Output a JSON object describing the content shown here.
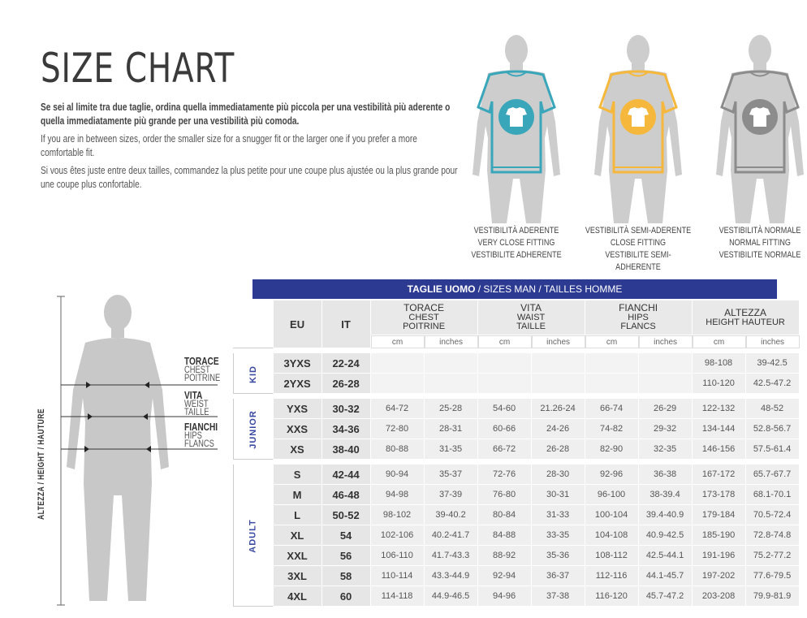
{
  "title": "SIZE CHART",
  "intro": {
    "it": "Se sei al limite tra due taglie, ordina quella immediatamente più piccola per una vestibilità più aderente o quella immediatamente più grande per una vestibilità più comoda.",
    "en": "If you are in between sizes, order the smaller size for a snugger fit or the larger one if you prefer a more comfortable fit.",
    "fr": "Si vous êtes juste entre deux tailles, commandez la plus petite pour une coupe plus ajustée ou la plus grande pour une coupe plus confortable."
  },
  "fits": [
    {
      "l1": "VESTIBILITÀ ADERENTE",
      "l2": "VERY CLOSE FITTING",
      "l3": "VESTIBILITE ADHERENTE",
      "color": "#3aa6b9"
    },
    {
      "l1": "VESTIBILITÀ SEMI-ADERENTE",
      "l2": "CLOSE FITTING",
      "l3": "VESTIBILITE SEMI-ADHERENTE",
      "color": "#f5b83c"
    },
    {
      "l1": "VESTIBILITÀ NORMALE",
      "l2": "NORMAL FITTING",
      "l3": "VESTIBILITE NORMALE",
      "color": "#8c8c8c"
    }
  ],
  "measure_labels": {
    "chest": {
      "l1": "TORACE",
      "l2": "CHEST",
      "l3": "POITRINE"
    },
    "waist": {
      "l1": "VITA",
      "l2": "WEIST",
      "l3": "TAILLE"
    },
    "hips": {
      "l1": "FIANCHI",
      "l2": "HIPS",
      "l3": "FLANCS"
    },
    "height": "ALTEZZA / HEIGHT / HAUTURE"
  },
  "table": {
    "banner_bold": "TAGLIE UOMO",
    "banner_rest": " / SIZES MAN / TAILLES HOMME",
    "col_eu": "EU",
    "col_it": "IT",
    "chest": {
      "l1": "TORACE",
      "l2": "CHEST",
      "l3": "POITRINE"
    },
    "waist": {
      "l1": "VITA",
      "l2": "WAIST",
      "l3": "TAILLE"
    },
    "hips": {
      "l1": "FIANCHI",
      "l2": "HIPS",
      "l3": "FLANCS"
    },
    "height": {
      "l1": "ALTEZZA",
      "l2": "HEIGHT HAUTEUR"
    },
    "cm": "cm",
    "inches": "inches",
    "groups": [
      {
        "name": "KID",
        "rows": [
          [
            "3YXS",
            "22-24",
            "",
            "",
            "",
            "",
            "",
            "",
            "98-108",
            "39-42.5"
          ],
          [
            "2YXS",
            "26-28",
            "",
            "",
            "",
            "",
            "",
            "",
            "110-120",
            "42.5-47.2"
          ]
        ]
      },
      {
        "name": "JUNIOR",
        "rows": [
          [
            "YXS",
            "30-32",
            "64-72",
            "25-28",
            "54-60",
            "21.26-24",
            "66-74",
            "26-29",
            "122-132",
            "48-52"
          ],
          [
            "XXS",
            "34-36",
            "72-80",
            "28-31",
            "60-66",
            "24-26",
            "74-82",
            "29-32",
            "134-144",
            "52.8-56.7"
          ],
          [
            "XS",
            "38-40",
            "80-88",
            "31-35",
            "66-72",
            "26-28",
            "82-90",
            "32-35",
            "146-156",
            "57.5-61.4"
          ]
        ]
      },
      {
        "name": "ADULT",
        "rows": [
          [
            "S",
            "42-44",
            "90-94",
            "35-37",
            "72-76",
            "28-30",
            "92-96",
            "36-38",
            "167-172",
            "65.7-67.7"
          ],
          [
            "M",
            "46-48",
            "94-98",
            "37-39",
            "76-80",
            "30-31",
            "96-100",
            "38-39.4",
            "173-178",
            "68.1-70.1"
          ],
          [
            "L",
            "50-52",
            "98-102",
            "39-40.2",
            "80-84",
            "31-33",
            "100-104",
            "39.4-40.9",
            "179-184",
            "70.5-72.4"
          ],
          [
            "XL",
            "54",
            "102-106",
            "40.2-41.7",
            "84-88",
            "33-35",
            "104-108",
            "40.9-42.5",
            "185-190",
            "72.8-74.8"
          ],
          [
            "XXL",
            "56",
            "106-110",
            "41.7-43.3",
            "88-92",
            "35-36",
            "108-112",
            "42.5-44.1",
            "191-196",
            "75.2-77.2"
          ],
          [
            "3XL",
            "58",
            "110-114",
            "43.3-44.9",
            "92-94",
            "36-37",
            "112-116",
            "44.1-45.7",
            "197-202",
            "77.6-79.5"
          ],
          [
            "4XL",
            "60",
            "114-118",
            "44.9-46.5",
            "94-96",
            "37-38",
            "116-120",
            "45.7-47.2",
            "203-208",
            "79.9-81.9"
          ]
        ]
      }
    ]
  }
}
